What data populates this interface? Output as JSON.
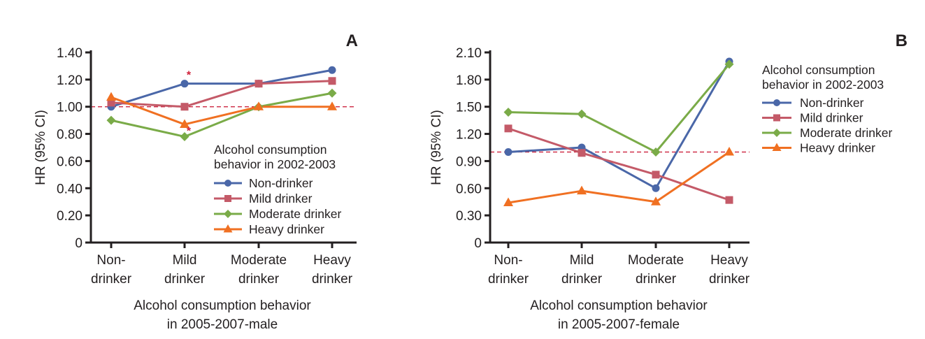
{
  "chart_data": [
    {
      "type": "line",
      "panel_label": "A",
      "title": "",
      "xlabel": [
        "Alcohol consumption behavior",
        "in 2005-2007-male"
      ],
      "ylabel": "HR (95% CI)",
      "categories": [
        [
          "Non-",
          "drinker"
        ],
        [
          "Mild",
          "drinker"
        ],
        [
          "Moderate",
          "drinker"
        ],
        [
          "Heavy",
          "drinker"
        ]
      ],
      "ylim": [
        0,
        1.4
      ],
      "yticks": [
        0,
        0.2,
        0.4,
        0.6,
        0.8,
        1.0,
        1.2,
        1.4
      ],
      "ytick_labels": [
        "0",
        "0.20",
        "0.40",
        "0.60",
        "0.80",
        "1.00",
        "1.20",
        "1.40"
      ],
      "reference_line": 1.0,
      "legend": {
        "title": [
          "Alcohol consumption",
          "behavior in 2002-2003"
        ],
        "placement": "lower-right"
      },
      "series": [
        {
          "name": "Non-drinker",
          "color": "#4a67a8",
          "marker": "circle",
          "values": [
            1.0,
            1.17,
            1.17,
            1.27
          ]
        },
        {
          "name": "Mild drinker",
          "color": "#c45a68",
          "marker": "square",
          "values": [
            1.03,
            1.0,
            1.17,
            1.19
          ]
        },
        {
          "name": "Moderate drinker",
          "color": "#7aab48",
          "marker": "diamond",
          "values": [
            0.9,
            0.78,
            1.0,
            1.1
          ]
        },
        {
          "name": "Heavy drinker",
          "color": "#f07022",
          "marker": "triangle",
          "values": [
            1.07,
            0.87,
            1.0,
            1.0
          ]
        }
      ],
      "annotations": [
        {
          "text": "*",
          "series": "Non-drinker",
          "category_index": 1,
          "color": "#d0213a"
        },
        {
          "text": "*",
          "series": "Moderate drinker",
          "category_index": 1,
          "color": "#d0213a"
        }
      ]
    },
    {
      "type": "line",
      "panel_label": "B",
      "title": "",
      "xlabel": [
        "Alcohol consumption behavior",
        "in 2005-2007-female"
      ],
      "ylabel": "HR (95% CI)",
      "categories": [
        [
          "Non-",
          "drinker"
        ],
        [
          "Mild",
          "drinker"
        ],
        [
          "Moderate",
          "drinker"
        ],
        [
          "Heavy",
          "drinker"
        ]
      ],
      "ylim": [
        0,
        2.1
      ],
      "yticks": [
        0,
        0.3,
        0.6,
        0.9,
        1.2,
        1.5,
        1.8,
        2.1
      ],
      "ytick_labels": [
        "0",
        "0.30",
        "0.60",
        "0.90",
        "1.20",
        "1.50",
        "1.80",
        "2.10"
      ],
      "reference_line": 1.0,
      "legend": {
        "title": [
          "Alcohol consumption",
          "behavior in 2002-2003"
        ],
        "placement": "right"
      },
      "series": [
        {
          "name": "Non-drinker",
          "color": "#4a67a8",
          "marker": "circle",
          "values": [
            1.0,
            1.05,
            0.6,
            2.0
          ]
        },
        {
          "name": "Mild drinker",
          "color": "#c45a68",
          "marker": "square",
          "values": [
            1.26,
            0.99,
            0.75,
            0.47
          ]
        },
        {
          "name": "Moderate drinker",
          "color": "#7aab48",
          "marker": "diamond",
          "values": [
            1.44,
            1.42,
            1.0,
            1.97
          ]
        },
        {
          "name": "Heavy drinker",
          "color": "#f07022",
          "marker": "triangle",
          "values": [
            0.44,
            0.57,
            0.45,
            1.0
          ]
        }
      ],
      "annotations": []
    }
  ],
  "colors": {
    "axis": "#231f20",
    "reference_line": "#c8102e"
  }
}
